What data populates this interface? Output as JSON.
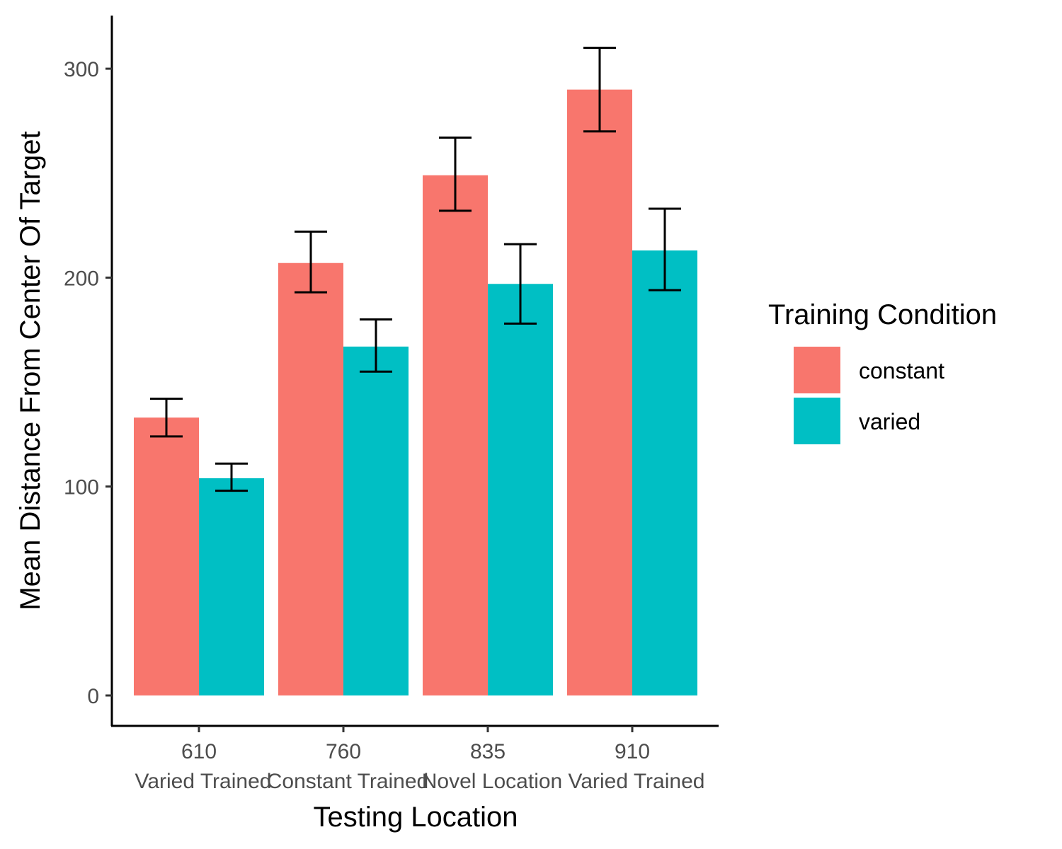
{
  "chart_data": {
    "type": "bar",
    "title": "",
    "xlabel": "Testing Location",
    "ylabel": "Mean Distance From Center Of Target",
    "ylim": [
      -15,
      325
    ],
    "yticks": [
      0,
      100,
      200,
      300
    ],
    "grid": false,
    "legend_position": "right",
    "legend_title": "Training Condition",
    "categories": [
      "610",
      "760",
      "835",
      "910"
    ],
    "category_sublabels": [
      "Varied Trained",
      "Constant Trained",
      "Novel Location",
      "Varied Trained"
    ],
    "series": [
      {
        "name": "constant",
        "color": "#F8766D",
        "values": [
          133,
          207,
          249,
          290
        ],
        "error_low": [
          124,
          193,
          232,
          270
        ],
        "error_high": [
          142,
          222,
          267,
          310
        ]
      },
      {
        "name": "varied",
        "color": "#00BFC4",
        "values": [
          104,
          167,
          197,
          213
        ],
        "error_low": [
          98,
          155,
          178,
          194
        ],
        "error_high": [
          111,
          180,
          216,
          233
        ]
      }
    ]
  }
}
